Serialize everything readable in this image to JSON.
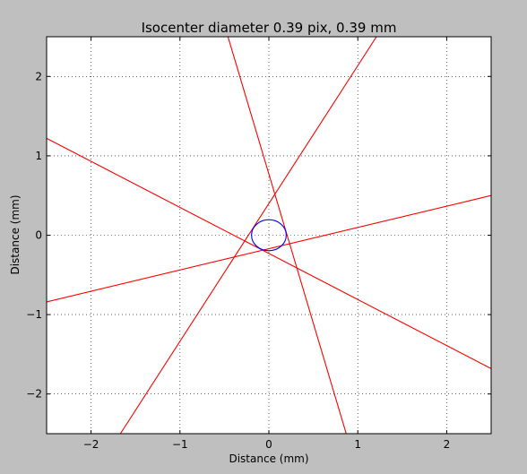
{
  "chart_data": {
    "type": "line",
    "title": "Isocenter diameter 0.39 pix, 0.39 mm",
    "xlabel": "Distance (mm)",
    "ylabel": "Distance (mm)",
    "xlim": [
      -2.5,
      2.5
    ],
    "ylim": [
      -2.5,
      2.5
    ],
    "xticks": [
      -2,
      -1,
      0,
      1,
      2
    ],
    "yticks": [
      -2,
      -1,
      0,
      1,
      2
    ],
    "xtick_labels": [
      "−2",
      "−1",
      "0",
      "1",
      "2"
    ],
    "ytick_labels": [
      "−2",
      "−1",
      "0",
      "1",
      "2"
    ],
    "grid": true,
    "grid_style": "dotted",
    "line_color": "#ff0000",
    "circle_color": "#0000ff",
    "lines": [
      {
        "x": [
          -0.46,
          0.87
        ],
        "y": [
          2.5,
          -2.5
        ]
      },
      {
        "x": [
          -1.67,
          1.21
        ],
        "y": [
          -2.5,
          2.5
        ]
      },
      {
        "x": [
          -2.5,
          2.5
        ],
        "y": [
          1.22,
          -1.68
        ]
      },
      {
        "x": [
          -2.5,
          2.5
        ],
        "y": [
          -0.84,
          0.5
        ]
      }
    ],
    "circle": {
      "cx": 0.0,
      "cy": 0.0,
      "r": 0.195
    }
  }
}
